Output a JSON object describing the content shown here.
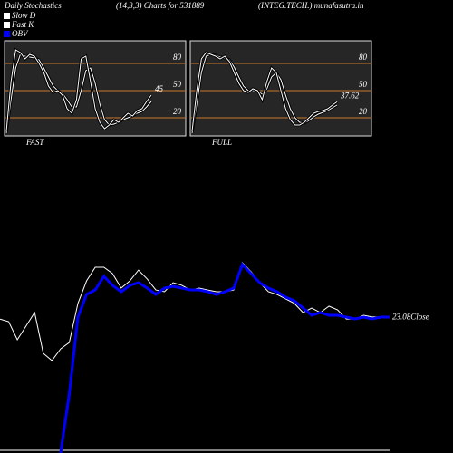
{
  "chart_data": [
    {
      "type": "stochastic",
      "header": "Daily Stochastics",
      "title": "FAST",
      "ylim": [
        0,
        105
      ],
      "yticks": [
        20,
        50,
        80
      ],
      "level_color": "#c8782a",
      "end_label": "45",
      "series": [
        {
          "name": "Slow D",
          "color": "#ffffff",
          "values": [
            3,
            40,
            75,
            90,
            88,
            87,
            86,
            84,
            75,
            65,
            55,
            50,
            47,
            40,
            32,
            32,
            50,
            72,
            75,
            58,
            35,
            18,
            12,
            13,
            15,
            18,
            20,
            22,
            25,
            27,
            32,
            38
          ]
        },
        {
          "name": "Fast K",
          "color": "#ffffff",
          "values": [
            5,
            60,
            95,
            92,
            85,
            90,
            88,
            80,
            70,
            55,
            48,
            50,
            45,
            30,
            25,
            40,
            85,
            88,
            60,
            30,
            15,
            8,
            12,
            18,
            15,
            20,
            25,
            22,
            28,
            30,
            38,
            45
          ]
        }
      ]
    },
    {
      "type": "stochastic",
      "header": "(14,3,3) Charts for 531889",
      "title": "FULL",
      "ylim": [
        0,
        105
      ],
      "yticks": [
        20,
        50,
        80
      ],
      "level_color": "#c8782a",
      "end_label": "37.62",
      "series": [
        {
          "color": "#ffffff",
          "values": [
            3,
            35,
            70,
            88,
            90,
            89,
            87,
            86,
            84,
            76,
            65,
            55,
            50,
            50,
            50,
            46,
            52,
            65,
            70,
            62,
            45,
            30,
            20,
            15,
            14,
            17,
            21,
            24,
            26,
            28,
            31,
            34
          ]
        },
        {
          "color": "#ffffff",
          "values": [
            5,
            50,
            85,
            92,
            90,
            88,
            85,
            88,
            82,
            70,
            58,
            50,
            48,
            52,
            50,
            40,
            60,
            75,
            70,
            50,
            30,
            18,
            12,
            12,
            15,
            20,
            25,
            27,
            28,
            30,
            34,
            37.62
          ]
        }
      ]
    },
    {
      "type": "line",
      "header": "(INTEG.TECH.) munafasutra.in",
      "ylim": [
        15.8,
        26.5
      ],
      "y2lim": [
        0,
        220
      ],
      "close_label": "Close",
      "series": [
        {
          "name": "Close",
          "color": "#ffffff",
          "values": [
            22.99,
            22.85,
            21.88,
            22.61,
            23.34,
            21.15,
            20.76,
            21.39,
            21.73,
            23.83,
            25.04,
            25.77,
            25.77,
            25.43,
            24.65,
            25.04,
            25.62,
            25.14,
            24.55,
            24.46,
            24.94,
            24.8,
            24.55,
            24.65,
            24.55,
            24.46,
            24.46,
            24.55,
            26.01,
            25.53,
            24.94,
            24.46,
            24.31,
            24.07,
            23.83,
            23.34,
            23.58,
            23.34,
            23.68,
            23.48,
            22.99,
            22.99,
            23.19,
            23.1,
            23.1,
            23.08
          ]
        },
        {
          "name": "OBV",
          "color": "#0000ff",
          "axis": "y2",
          "values": [
            null,
            null,
            null,
            null,
            null,
            null,
            null,
            0,
            65,
            150,
            175,
            180,
            195,
            185,
            178,
            185,
            188,
            182,
            175,
            182,
            184,
            182,
            180,
            180,
            178,
            175,
            178,
            182,
            208,
            198,
            188,
            182,
            178,
            172,
            168,
            160,
            152,
            155,
            152,
            152,
            150,
            148,
            150,
            148,
            150,
            150
          ]
        }
      ]
    }
  ]
}
